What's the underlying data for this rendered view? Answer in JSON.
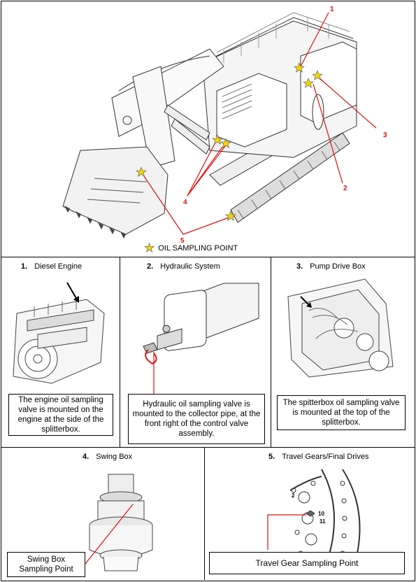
{
  "overview": {
    "legend_label": "OIL SAMPLING POINT",
    "callouts": [
      "1",
      "2",
      "3",
      "4",
      "5"
    ]
  },
  "sections": [
    {
      "number": "1.",
      "title": "Diesel Engine",
      "caption": "The engine oil sampling valve is mounted on the engine at the side of the splitterbox."
    },
    {
      "number": "2.",
      "title": "Hydraulic System",
      "caption": "Hydraulic oil sampling valve is mounted to the collector pipe, at the front right of the control valve assembly."
    },
    {
      "number": "3.",
      "title": "Pump Drive Box",
      "caption": "The spitterbox oil sampling valve is mounted at the top of the splitterbox."
    },
    {
      "number": "4.",
      "title": "Swing Box",
      "caption": "Swing Box Sampling Point"
    },
    {
      "number": "5.",
      "title": "Travel Gears/Final Drives",
      "caption": "Travel Gear Sampling Point",
      "labels": [
        "2",
        "10",
        "11"
      ]
    }
  ],
  "colors": {
    "accent": "#e01010",
    "star": "#f2d600",
    "border": "#000000"
  }
}
